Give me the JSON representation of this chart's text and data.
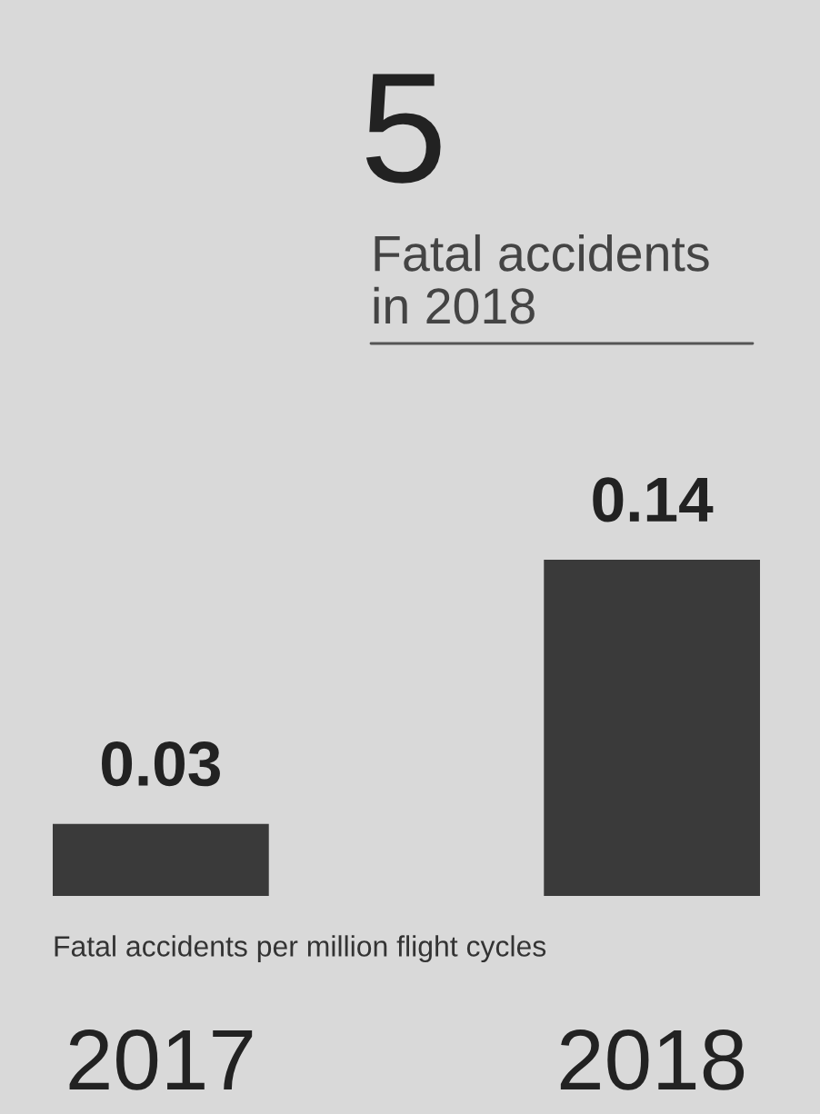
{
  "chart_data": {
    "type": "bar",
    "categories": [
      "2017",
      "2018"
    ],
    "values": [
      0.03,
      0.14
    ],
    "color": "#3a3a3a",
    "data_labels": true,
    "xlabel": "Fatal accidents per million flight cycles",
    "annotations": [
      "5",
      "Fatal accidents\nin 2018"
    ],
    "tick_labels": "x"
  }
}
